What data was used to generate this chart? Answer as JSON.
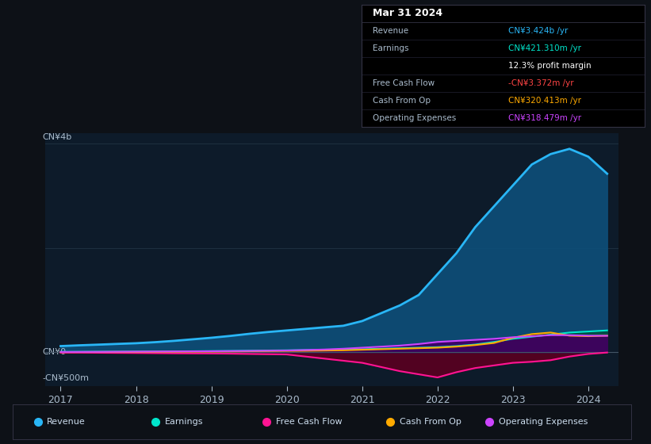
{
  "bg_color": "#0d1117",
  "plot_bg_color": "#0d1b2a",
  "title_box": {
    "date": "Mar 31 2024",
    "rows": [
      {
        "label": "Revenue",
        "value": "CN¥3.424b /yr",
        "value_color": "#29b6f6"
      },
      {
        "label": "Earnings",
        "value": "CN¥421.310m /yr",
        "value_color": "#00e5cc"
      },
      {
        "label": "",
        "value": "12.3% profit margin",
        "value_color": "#ffffff"
      },
      {
        "label": "Free Cash Flow",
        "value": "-CN¥3.372m /yr",
        "value_color": "#ff4444"
      },
      {
        "label": "Cash From Op",
        "value": "CN¥320.413m /yr",
        "value_color": "#ffaa00"
      },
      {
        "label": "Operating Expenses",
        "value": "CN¥318.479m /yr",
        "value_color": "#cc44ff"
      }
    ]
  },
  "ylabel_top": "CN¥4b",
  "ylabel_zero": "CN¥0",
  "ylabel_neg": "-CN¥500m",
  "ylim": [
    -650,
    4200
  ],
  "series": {
    "revenue": {
      "color": "#29b6f6",
      "fill_color": "#0d4f7a",
      "label": "Revenue",
      "x": [
        2017.0,
        2017.25,
        2017.5,
        2017.75,
        2018.0,
        2018.25,
        2018.5,
        2018.75,
        2019.0,
        2019.25,
        2019.5,
        2019.75,
        2020.0,
        2020.25,
        2020.5,
        2020.75,
        2021.0,
        2021.25,
        2021.5,
        2021.75,
        2022.0,
        2022.25,
        2022.5,
        2022.75,
        2023.0,
        2023.25,
        2023.5,
        2023.75,
        2024.0,
        2024.25
      ],
      "y": [
        120,
        135,
        148,
        162,
        175,
        195,
        220,
        250,
        280,
        315,
        355,
        390,
        420,
        450,
        480,
        510,
        600,
        750,
        900,
        1100,
        1500,
        1900,
        2400,
        2800,
        3200,
        3600,
        3800,
        3900,
        3750,
        3424
      ]
    },
    "earnings": {
      "color": "#00e5cc",
      "fill_color": "#004d44",
      "label": "Earnings",
      "x": [
        2017.0,
        2017.25,
        2017.5,
        2017.75,
        2018.0,
        2018.25,
        2018.5,
        2018.75,
        2019.0,
        2019.25,
        2019.5,
        2019.75,
        2020.0,
        2020.25,
        2020.5,
        2020.75,
        2021.0,
        2021.25,
        2021.5,
        2021.75,
        2022.0,
        2022.25,
        2022.5,
        2022.75,
        2023.0,
        2023.25,
        2023.5,
        2023.75,
        2024.0,
        2024.25
      ],
      "y": [
        10,
        12,
        14,
        15,
        17,
        18,
        20,
        22,
        25,
        28,
        32,
        36,
        40,
        45,
        50,
        55,
        60,
        70,
        80,
        90,
        100,
        120,
        150,
        200,
        260,
        300,
        340,
        380,
        400,
        421
      ]
    },
    "free_cash_flow": {
      "color": "#ff1493",
      "fill_color": "#5a0020",
      "label": "Free Cash Flow",
      "x": [
        2017.0,
        2017.25,
        2017.5,
        2017.75,
        2018.0,
        2018.25,
        2018.5,
        2018.75,
        2019.0,
        2019.25,
        2019.5,
        2019.75,
        2020.0,
        2020.25,
        2020.5,
        2020.75,
        2021.0,
        2021.25,
        2021.5,
        2021.75,
        2022.0,
        2022.25,
        2022.5,
        2022.75,
        2023.0,
        2023.25,
        2023.5,
        2023.75,
        2024.0,
        2024.25
      ],
      "y": [
        -5,
        -5,
        -8,
        -10,
        -12,
        -15,
        -18,
        -20,
        -22,
        -25,
        -30,
        -35,
        -40,
        -80,
        -120,
        -160,
        -200,
        -280,
        -360,
        -420,
        -480,
        -380,
        -300,
        -250,
        -200,
        -180,
        -150,
        -80,
        -30,
        -3
      ]
    },
    "cash_from_op": {
      "color": "#ffaa00",
      "fill_color": "#3d2800",
      "label": "Cash From Op",
      "x": [
        2017.0,
        2017.25,
        2017.5,
        2017.75,
        2018.0,
        2018.25,
        2018.5,
        2018.75,
        2019.0,
        2019.25,
        2019.5,
        2019.75,
        2020.0,
        2020.25,
        2020.5,
        2020.75,
        2021.0,
        2021.25,
        2021.5,
        2021.75,
        2022.0,
        2022.25,
        2022.5,
        2022.75,
        2023.0,
        2023.25,
        2023.5,
        2023.75,
        2024.0,
        2024.25
      ],
      "y": [
        5,
        6,
        7,
        8,
        8,
        10,
        12,
        14,
        15,
        18,
        22,
        25,
        28,
        30,
        35,
        40,
        50,
        60,
        70,
        80,
        90,
        110,
        140,
        180,
        280,
        350,
        380,
        320,
        310,
        320
      ]
    },
    "operating_expenses": {
      "color": "#cc44ff",
      "fill_color": "#3d0066",
      "label": "Operating Expenses",
      "x": [
        2017.0,
        2017.25,
        2017.5,
        2017.75,
        2018.0,
        2018.25,
        2018.5,
        2018.75,
        2019.0,
        2019.25,
        2019.5,
        2019.75,
        2020.0,
        2020.25,
        2020.5,
        2020.75,
        2021.0,
        2021.25,
        2021.5,
        2021.75,
        2022.0,
        2022.25,
        2022.5,
        2022.75,
        2023.0,
        2023.25,
        2023.5,
        2023.75,
        2024.0,
        2024.25
      ],
      "y": [
        8,
        9,
        10,
        12,
        14,
        16,
        18,
        20,
        22,
        25,
        28,
        32,
        36,
        45,
        55,
        70,
        90,
        110,
        130,
        160,
        200,
        220,
        240,
        260,
        290,
        310,
        330,
        330,
        320,
        318
      ]
    }
  },
  "legend": [
    {
      "label": "Revenue",
      "color": "#29b6f6"
    },
    {
      "label": "Earnings",
      "color": "#00e5cc"
    },
    {
      "label": "Free Cash Flow",
      "color": "#ff1493"
    },
    {
      "label": "Cash From Op",
      "color": "#ffaa00"
    },
    {
      "label": "Operating Expenses",
      "color": "#cc44ff"
    }
  ]
}
